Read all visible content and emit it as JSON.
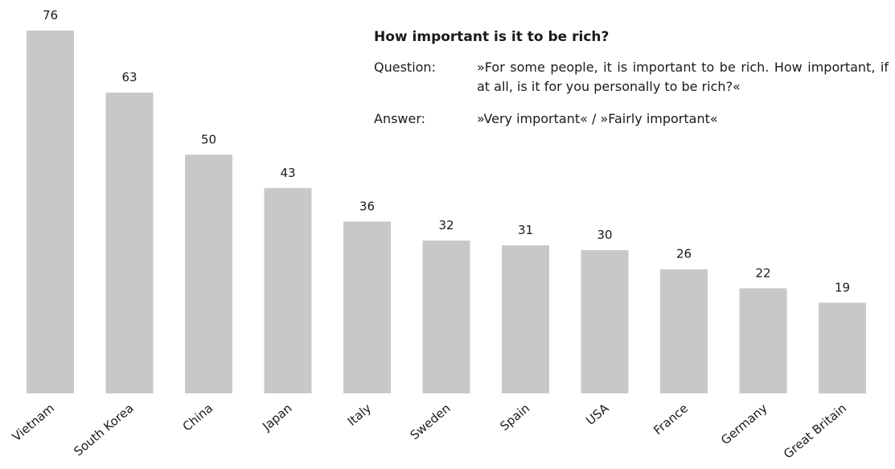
{
  "info": {
    "title": "How important is it to be rich?",
    "question_label": "Question:",
    "question_text": "»For some people, it is important to be rich. How important, if at all, is it for you personally to be rich?«",
    "answer_label": "Answer:",
    "answer_text": "»Very important« / »Fairly important«"
  },
  "colors": {
    "bar": "#c8c8c7",
    "text": "#1a1a1a"
  },
  "chart_data": {
    "type": "bar",
    "title": "How important is it to be rich?",
    "xlabel": "",
    "ylabel": "",
    "categories": [
      "Vietnam",
      "South Korea",
      "China",
      "Japan",
      "Italy",
      "Sweden",
      "Spain",
      "USA",
      "France",
      "Germany",
      "Great Britain"
    ],
    "values": [
      76,
      63,
      50,
      43,
      36,
      32,
      31,
      30,
      26,
      22,
      19
    ],
    "ylim": [
      0,
      76
    ],
    "grid": false,
    "data_labels": true
  }
}
